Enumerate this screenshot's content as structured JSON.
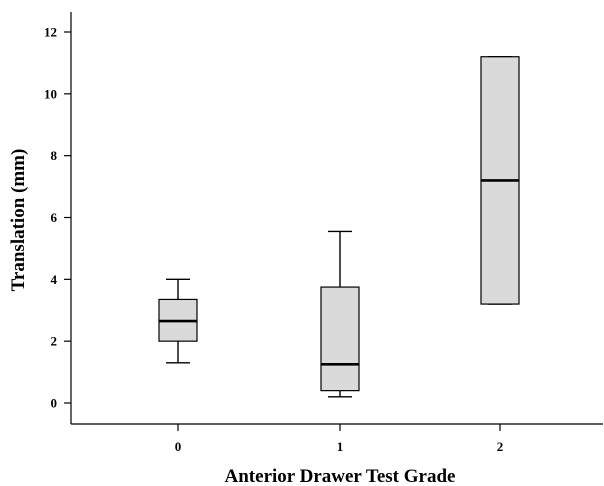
{
  "chart_data": {
    "type": "box",
    "title": "",
    "xlabel": "Anterior Drawer Test Grade",
    "ylabel": "Translation (mm)",
    "ylim": [
      -0.7,
      12.6
    ],
    "yticks": [
      0,
      2,
      4,
      6,
      8,
      10,
      12
    ],
    "categories": [
      "0",
      "1",
      "2"
    ],
    "boxes": [
      {
        "category": "0",
        "whisker_low": 1.3,
        "q1": 2.0,
        "median": 2.65,
        "q3": 3.35,
        "whisker_high": 4.0
      },
      {
        "category": "1",
        "whisker_low": 0.2,
        "q1": 0.4,
        "median": 1.25,
        "q3": 3.75,
        "whisker_high": 5.55
      },
      {
        "category": "2",
        "whisker_low": 3.2,
        "q1": 3.2,
        "median": 7.2,
        "q3": 11.2,
        "whisker_high": 11.2
      }
    ],
    "box_fill": "#dadada",
    "line_color": "#000000",
    "grid": false,
    "legend": "none"
  }
}
